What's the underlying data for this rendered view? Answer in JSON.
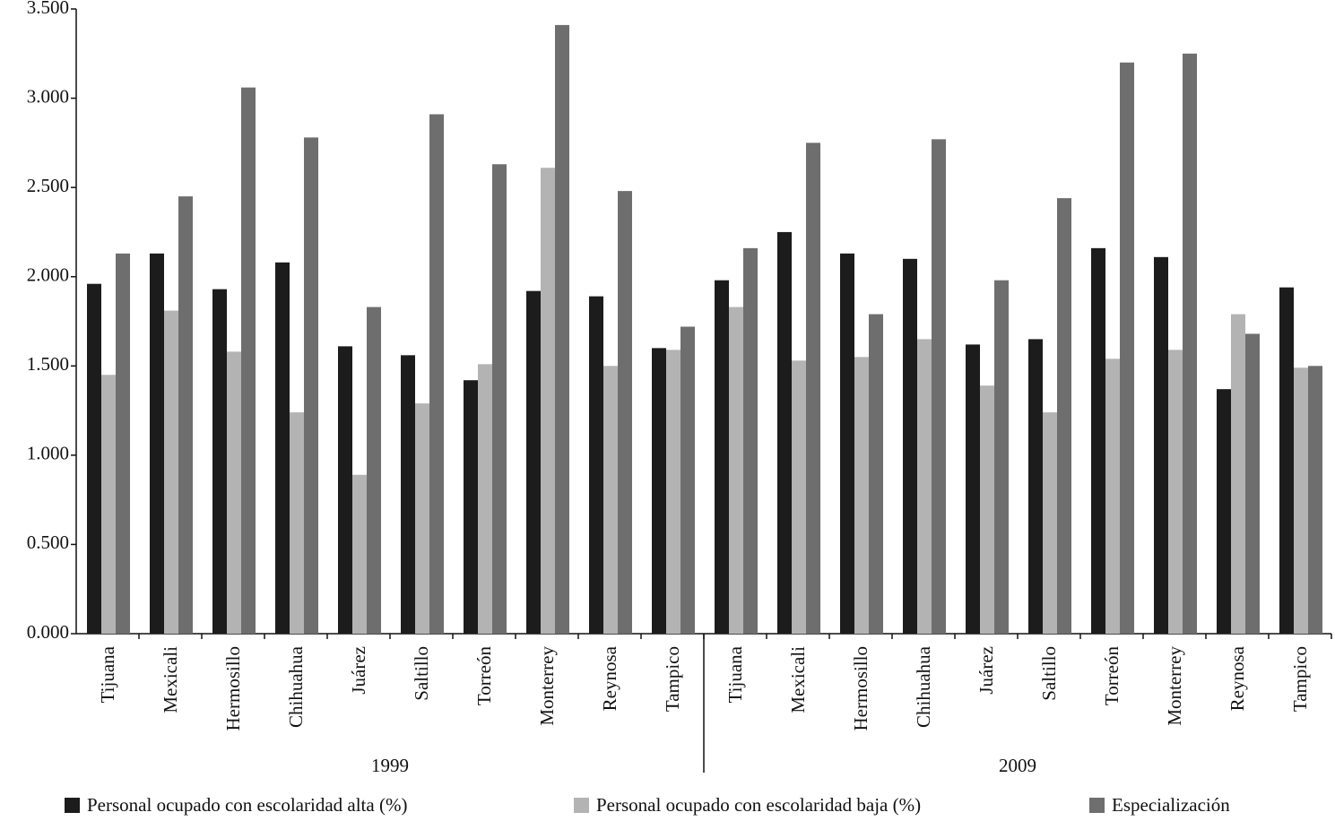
{
  "chart_data": {
    "type": "bar",
    "categories": [
      "Tijuana",
      "Mexicali",
      "Hermosillo",
      "Chihuahua",
      "Juárez",
      "Saltillo",
      "Torreón",
      "Monterrey",
      "Reynosa",
      "Tampico",
      "Tijuana",
      "Mexicali",
      "Hermosillo",
      "Chihuahua",
      "Juárez",
      "Saltillo",
      "Torreón",
      "Monterrey",
      "Reynosa",
      "Tampico"
    ],
    "groups": [
      "1999",
      "2009"
    ],
    "series": [
      {
        "name": "Personal ocupado con escolaridad alta (%)",
        "color": "#1c1c1c",
        "values": [
          1.96,
          2.13,
          1.93,
          2.08,
          1.61,
          1.56,
          1.42,
          1.92,
          1.89,
          1.6,
          1.98,
          2.25,
          2.13,
          2.1,
          1.62,
          1.65,
          2.16,
          2.11,
          1.37,
          1.94
        ]
      },
      {
        "name": "Personal ocupado con escolaridad baja (%)",
        "color": "#b3b3b3",
        "values": [
          1.45,
          1.81,
          1.58,
          1.24,
          0.89,
          1.29,
          1.51,
          2.61,
          1.5,
          1.59,
          1.83,
          1.53,
          1.55,
          1.65,
          1.39,
          1.24,
          1.54,
          1.59,
          1.79,
          1.49
        ]
      },
      {
        "name": "Especialización",
        "color": "#6e6e6e",
        "values": [
          2.13,
          2.45,
          3.06,
          2.78,
          1.83,
          2.91,
          2.63,
          3.41,
          2.48,
          1.72,
          2.16,
          2.75,
          1.79,
          2.77,
          1.98,
          2.44,
          3.2,
          3.25,
          1.68,
          1.5
        ]
      }
    ],
    "ylim": [
      0,
      3.5
    ],
    "yticks": [
      {
        "value": 0,
        "label": "0.000"
      },
      {
        "value": 0.5,
        "label": "0.500"
      },
      {
        "value": 1,
        "label": "1.000"
      },
      {
        "value": 1.5,
        "label": "1.500"
      },
      {
        "value": 2,
        "label": "2.000"
      },
      {
        "value": 2.5,
        "label": "2.500"
      },
      {
        "value": 3,
        "label": "3.000"
      },
      {
        "value": 3.5,
        "label": "3.500"
      }
    ],
    "grid": false
  }
}
